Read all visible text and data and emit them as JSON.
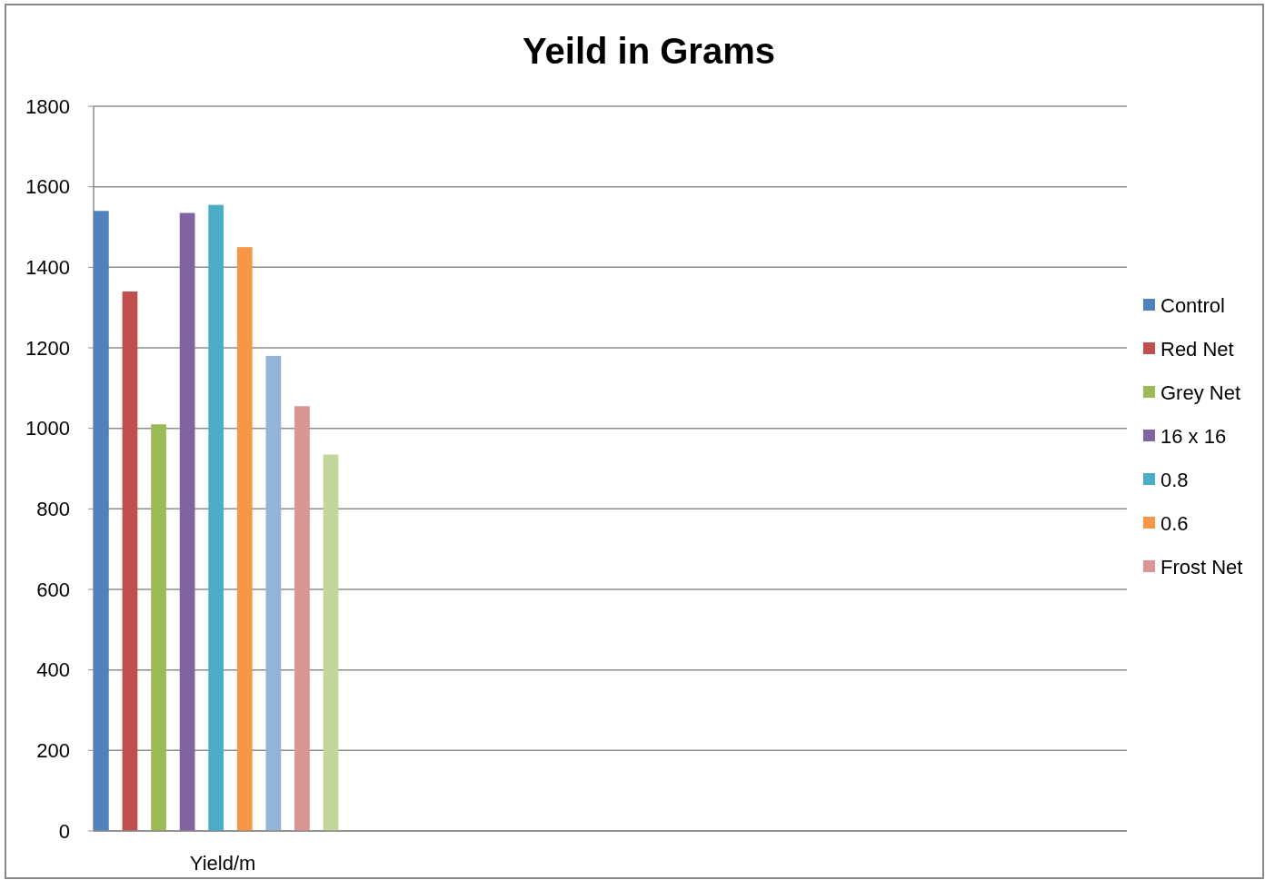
{
  "chart_data": {
    "type": "bar",
    "title": "Yeild in Grams",
    "categories": [
      "Yield/m",
      null,
      null,
      null
    ],
    "series": [
      {
        "name": "Control",
        "color": "#4f81bd",
        "values": [
          1540,
          null,
          null,
          null
        ]
      },
      {
        "name": "Red Net",
        "color": "#c0504d",
        "values": [
          1340,
          null,
          null,
          null
        ]
      },
      {
        "name": "Grey Net",
        "color": "#9bbb59",
        "values": [
          1010,
          null,
          null,
          null
        ]
      },
      {
        "name": "16 x 16",
        "color": "#8064a2",
        "values": [
          1535,
          null,
          null,
          null
        ]
      },
      {
        "name": "0.8",
        "color": "#4bacc6",
        "values": [
          1555,
          null,
          null,
          null
        ]
      },
      {
        "name": "0.6",
        "color": "#f79646",
        "values": [
          1450,
          null,
          null,
          null
        ]
      },
      {
        "color": "#95b3d7",
        "values": [
          1180,
          null,
          null,
          null
        ]
      },
      {
        "name": "Frost Net",
        "color": "#d99694",
        "values": [
          1055,
          null,
          null,
          null
        ]
      },
      {
        "color": "#c3d69b",
        "values": [
          935,
          null,
          null,
          null
        ]
      }
    ],
    "ylim": [
      0,
      1800
    ],
    "yticks": [
      0,
      200,
      400,
      600,
      800,
      1000,
      1200,
      1400,
      1600,
      1800
    ],
    "grid": "y",
    "legend": "right"
  }
}
